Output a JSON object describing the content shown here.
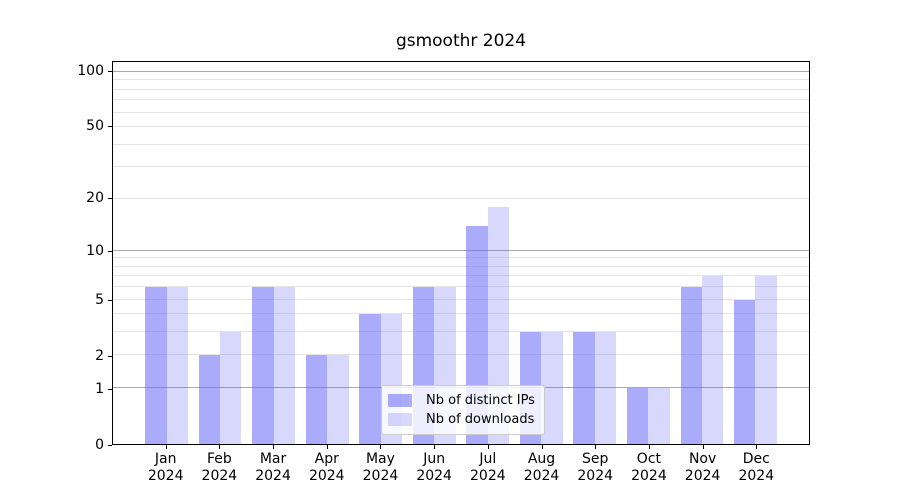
{
  "title": "gsmoothr 2024",
  "colors": {
    "bar_ips": "#6A6AF890",
    "bar_downloads": "#6A6AF843",
    "grid_major": "#A9A9A9",
    "grid_minor": "#E5E5E5",
    "axis": "#000000",
    "legend_border": "#CCCCCC"
  },
  "legend": {
    "items": [
      {
        "label": "Nb of distinct IPs",
        "series_key": "ips"
      },
      {
        "label": "Nb of downloads",
        "series_key": "downloads"
      }
    ]
  },
  "chart_data": {
    "type": "bar",
    "title": "gsmoothr 2024",
    "categories": [
      "Jan",
      "Feb",
      "Mar",
      "Apr",
      "May",
      "Jun",
      "Jul",
      "Aug",
      "Sep",
      "Oct",
      "Nov",
      "Dec"
    ],
    "year": "2024",
    "series": [
      {
        "name": "Nb of distinct IPs",
        "key": "ips",
        "values": [
          6,
          2,
          6,
          2,
          4,
          6,
          14,
          3,
          3,
          1,
          6,
          5
        ]
      },
      {
        "name": "Nb of downloads",
        "key": "downloads",
        "values": [
          6,
          3,
          6,
          2,
          4,
          6,
          18,
          3,
          3,
          1,
          7,
          7
        ]
      }
    ],
    "xlabel": "",
    "ylabel": "",
    "yscale": "log1p",
    "ylim": [
      0,
      113.4
    ],
    "yticks": [
      0,
      1,
      2,
      5,
      10,
      20,
      50,
      100
    ],
    "major_gridlines": [
      1,
      10,
      100
    ],
    "minor_gridlines": [
      2,
      3,
      4,
      5,
      6,
      7,
      8,
      9,
      20,
      30,
      40,
      50,
      60,
      70,
      80,
      90
    ],
    "grid": true,
    "legend_position": "lower center",
    "bar_group_slots": 13,
    "bar_width_units": 0.4
  }
}
